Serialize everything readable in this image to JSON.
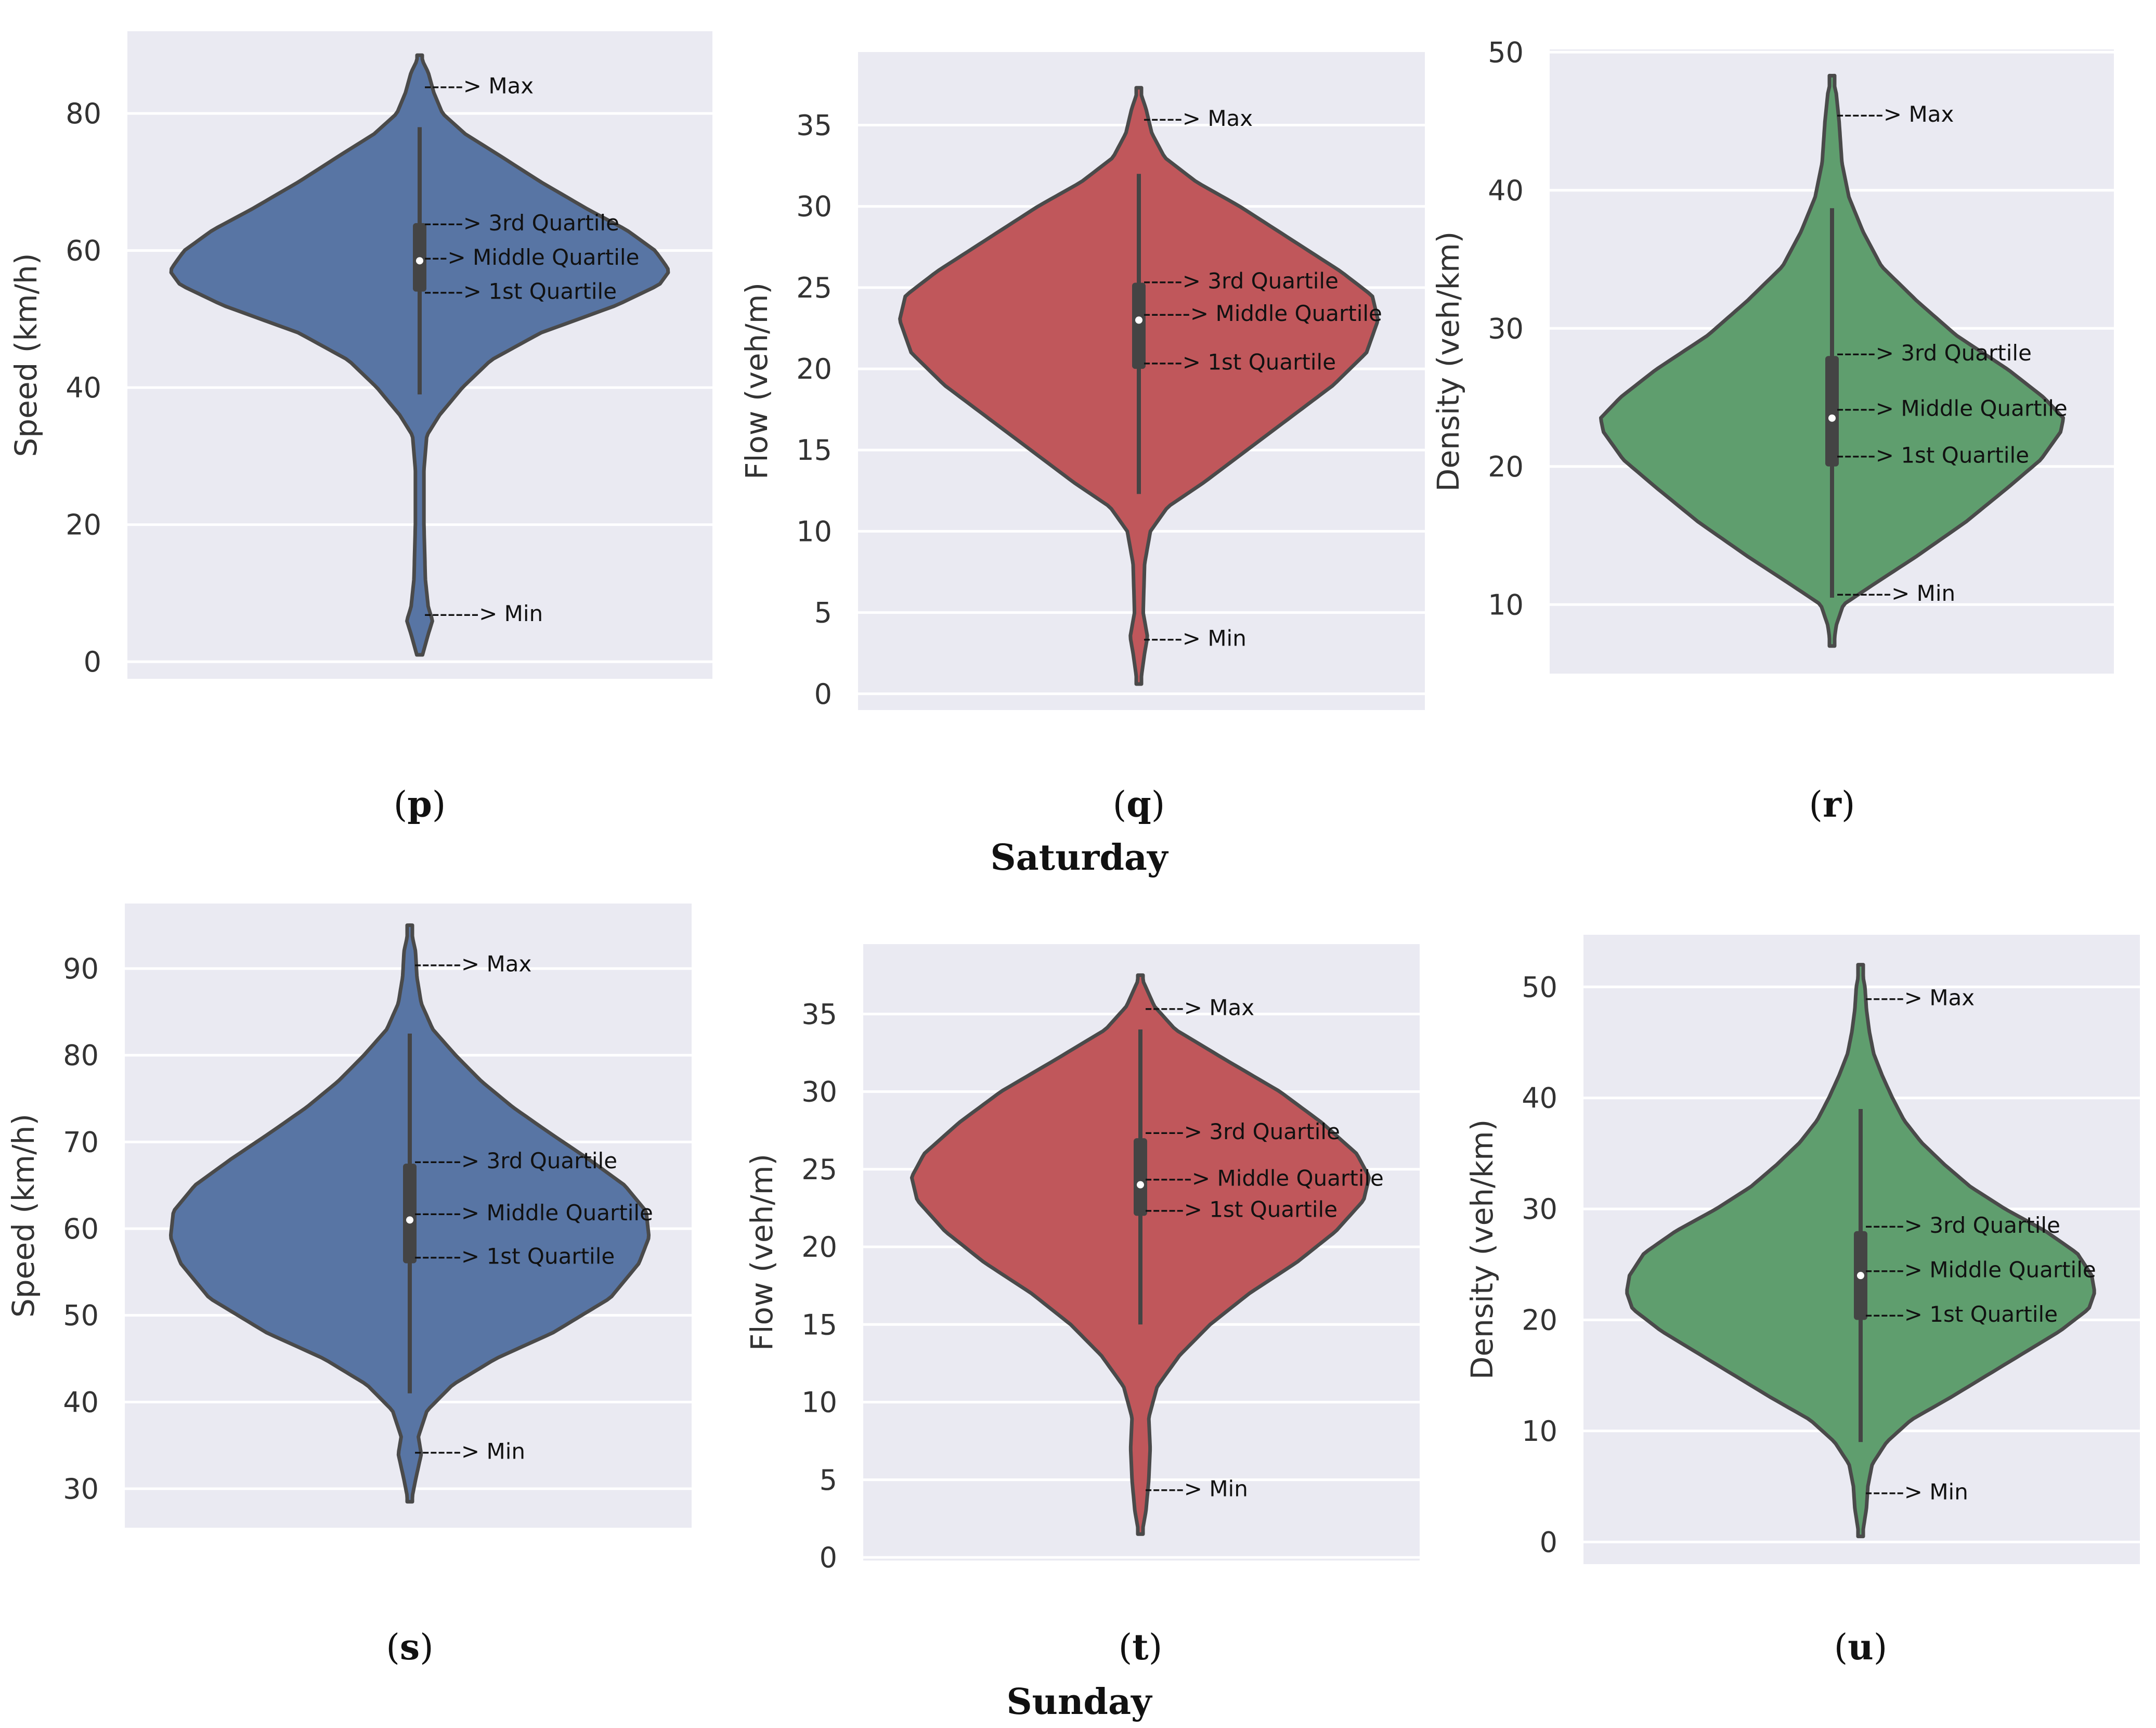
{
  "figure": {
    "group_titles": [
      "Saturday",
      "Sunday"
    ]
  },
  "chart_data": [
    {
      "panel": "p",
      "group": "Saturday",
      "type": "violin",
      "variable": "Speed",
      "ylabel": "Speed (km/h)",
      "ylim": [
        -2.5,
        92
      ],
      "yticks": [
        0,
        20,
        40,
        60,
        80
      ],
      "color": "#5875a4",
      "stats": {
        "min": 7,
        "q1": 54,
        "median": 58.5,
        "q3": 64,
        "max": 84,
        "whisker_low": 39,
        "whisker_high": 78
      },
      "density": {
        "tail_low": 1,
        "tail_high": 88.5,
        "profile": [
          [
            1,
            2
          ],
          [
            4,
            6
          ],
          [
            6,
            9
          ],
          [
            8,
            6
          ],
          [
            12,
            4
          ],
          [
            20,
            3
          ],
          [
            28,
            3
          ],
          [
            33,
            5
          ],
          [
            36,
            14
          ],
          [
            40,
            30
          ],
          [
            44,
            50
          ],
          [
            48,
            85
          ],
          [
            52,
            138
          ],
          [
            55,
            168
          ],
          [
            57,
            175
          ],
          [
            58,
            172
          ],
          [
            60,
            165
          ],
          [
            63,
            145
          ],
          [
            66,
            118
          ],
          [
            70,
            85
          ],
          [
            74,
            55
          ],
          [
            77,
            32
          ],
          [
            80,
            16
          ],
          [
            83,
            10
          ],
          [
            86,
            6
          ],
          [
            88.5,
            0
          ]
        ]
      },
      "annotations": [
        {
          "value": 84,
          "label": "-----> Max"
        },
        {
          "value": 64,
          "label": "-----> 3rd Quartile"
        },
        {
          "value": 59,
          "label": "---> Middle Quartile"
        },
        {
          "value": 54,
          "label": "-----> 1st Quartile"
        },
        {
          "value": 7,
          "label": "-------> Min"
        }
      ],
      "caption_letter": "p"
    },
    {
      "panel": "q",
      "group": "Saturday",
      "type": "violin",
      "variable": "Flow",
      "ylabel": "Flow (veh/m)",
      "ylim": [
        -1,
        39.5
      ],
      "yticks": [
        0,
        5,
        10,
        15,
        20,
        25,
        30,
        35
      ],
      "color": "#c0575b",
      "stats": {
        "min": 3.3,
        "q1": 20,
        "median": 23,
        "q3": 25.3,
        "max": 35.4,
        "whisker_low": 12.3,
        "whisker_high": 32
      },
      "density": {
        "tail_low": 0.6,
        "tail_high": 37.3,
        "profile": [
          [
            0.6,
            1
          ],
          [
            2.5,
            4
          ],
          [
            3.5,
            6
          ],
          [
            5,
            3
          ],
          [
            8,
            4
          ],
          [
            10,
            8
          ],
          [
            11.5,
            20
          ],
          [
            13,
            45
          ],
          [
            15,
            75
          ],
          [
            17,
            105
          ],
          [
            19,
            135
          ],
          [
            21,
            158
          ],
          [
            23,
            166
          ],
          [
            24.5,
            162
          ],
          [
            26,
            140
          ],
          [
            28,
            105
          ],
          [
            30,
            70
          ],
          [
            31.5,
            40
          ],
          [
            33,
            18
          ],
          [
            34.5,
            9
          ],
          [
            36,
            5
          ],
          [
            37.3,
            0
          ]
        ]
      },
      "annotations": [
        {
          "value": 35.4,
          "label": "-----> Max"
        },
        {
          "value": 25.4,
          "label": "-----> 3rd Quartile"
        },
        {
          "value": 23.4,
          "label": "------> Middle Quartile"
        },
        {
          "value": 20.4,
          "label": "-----> 1st Quartile"
        },
        {
          "value": 3.4,
          "label": "-----> Min"
        }
      ],
      "caption_letter": "q"
    },
    {
      "panel": "r",
      "group": "Saturday",
      "type": "violin",
      "variable": "Density",
      "ylabel": "Density (veh/km)",
      "ylim": [
        5,
        50.2
      ],
      "yticks": [
        10,
        20,
        30,
        40,
        50
      ],
      "color": "#5f9e6e",
      "stats": {
        "min": 10.7,
        "q1": 20,
        "median": 23.5,
        "q3": 28,
        "max": 45.5,
        "whisker_low": 10.5,
        "whisker_high": 38.7
      },
      "density": {
        "tail_low": 7,
        "tail_high": 48.3,
        "profile": [
          [
            7,
            1
          ],
          [
            8.5,
            3
          ],
          [
            10,
            8
          ],
          [
            11.5,
            30
          ],
          [
            13.5,
            60
          ],
          [
            16,
            95
          ],
          [
            18.5,
            125
          ],
          [
            20.5,
            148
          ],
          [
            22.5,
            162
          ],
          [
            23.5,
            164
          ],
          [
            25,
            150
          ],
          [
            27,
            125
          ],
          [
            29.5,
            88
          ],
          [
            32,
            60
          ],
          [
            34.5,
            35
          ],
          [
            37,
            22
          ],
          [
            39.5,
            12
          ],
          [
            42,
            7
          ],
          [
            45,
            5
          ],
          [
            47,
            3
          ],
          [
            48.3,
            0
          ]
        ]
      },
      "annotations": [
        {
          "value": 45.5,
          "label": "------> Max"
        },
        {
          "value": 28.2,
          "label": "-----> 3rd Quartile"
        },
        {
          "value": 24.2,
          "label": "-----> Middle Quartile"
        },
        {
          "value": 20.8,
          "label": "-----> 1st Quartile"
        },
        {
          "value": 10.8,
          "label": "-------> Min"
        }
      ],
      "caption_letter": "r"
    },
    {
      "panel": "s",
      "group": "Sunday",
      "type": "violin",
      "variable": "Speed",
      "ylabel": "Speed (km/h)",
      "ylim": [
        25.5,
        97.5
      ],
      "yticks": [
        30,
        40,
        50,
        60,
        70,
        80,
        90
      ],
      "color": "#5875a4",
      "stats": {
        "min": 34.5,
        "q1": 56,
        "median": 61,
        "q3": 67.5,
        "max": 90.5,
        "whisker_low": 41,
        "whisker_high": 82.5
      },
      "density": {
        "tail_low": 28.5,
        "tail_high": 95,
        "profile": [
          [
            28.5,
            1
          ],
          [
            31,
            4
          ],
          [
            34,
            8
          ],
          [
            36,
            6
          ],
          [
            39,
            12
          ],
          [
            42,
            30
          ],
          [
            45,
            60
          ],
          [
            48,
            100
          ],
          [
            52,
            140
          ],
          [
            56,
            160
          ],
          [
            59,
            167
          ],
          [
            62,
            165
          ],
          [
            65,
            150
          ],
          [
            68,
            125
          ],
          [
            71,
            98
          ],
          [
            74,
            72
          ],
          [
            77,
            50
          ],
          [
            80,
            32
          ],
          [
            83,
            16
          ],
          [
            86,
            8
          ],
          [
            89,
            5
          ],
          [
            92,
            4
          ],
          [
            95,
            0
          ]
        ]
      },
      "annotations": [
        {
          "value": 90.5,
          "label": "------> Max"
        },
        {
          "value": 67.8,
          "label": "------> 3rd Quartile"
        },
        {
          "value": 61.8,
          "label": "------> Middle Quartile"
        },
        {
          "value": 56.8,
          "label": "------> 1st Quartile"
        },
        {
          "value": 34.3,
          "label": "------> Min"
        }
      ],
      "caption_letter": "s"
    },
    {
      "panel": "t",
      "group": "Sunday",
      "type": "violin",
      "variable": "Flow",
      "ylabel": "Flow (veh/m)",
      "ylim": [
        -0.2,
        39.5
      ],
      "yticks": [
        0,
        5,
        10,
        15,
        20,
        25,
        30,
        35
      ],
      "color": "#c0575b",
      "stats": {
        "min": 4.4,
        "q1": 22,
        "median": 24,
        "q3": 27,
        "max": 35.4,
        "whisker_low": 15,
        "whisker_high": 34
      },
      "density": {
        "tail_low": 1.5,
        "tail_high": 37.5,
        "profile": [
          [
            1.5,
            1
          ],
          [
            3,
            4
          ],
          [
            5,
            6
          ],
          [
            7,
            7
          ],
          [
            9,
            6
          ],
          [
            11,
            12
          ],
          [
            13,
            28
          ],
          [
            15,
            50
          ],
          [
            17,
            78
          ],
          [
            19,
            112
          ],
          [
            21,
            140
          ],
          [
            23,
            160
          ],
          [
            24.5,
            164
          ],
          [
            26,
            155
          ],
          [
            28,
            130
          ],
          [
            30,
            100
          ],
          [
            32,
            62
          ],
          [
            34,
            25
          ],
          [
            35.5,
            10
          ],
          [
            36.5,
            5
          ],
          [
            37.5,
            0
          ]
        ]
      },
      "annotations": [
        {
          "value": 35.4,
          "label": "-----> Max"
        },
        {
          "value": 27.4,
          "label": "-----> 3rd Quartile"
        },
        {
          "value": 24.4,
          "label": "------> Middle Quartile"
        },
        {
          "value": 22.4,
          "label": "-----> 1st Quartile"
        },
        {
          "value": 4.4,
          "label": "-----> Min"
        }
      ],
      "caption_letter": "t"
    },
    {
      "panel": "u",
      "group": "Sunday",
      "type": "violin",
      "variable": "Density",
      "ylabel": "Density (veh/km)",
      "ylim": [
        -2,
        54.7
      ],
      "yticks": [
        0,
        10,
        20,
        30,
        40,
        50
      ],
      "color": "#5f9e6e",
      "stats": {
        "min": 4.5,
        "q1": 20,
        "median": 24,
        "q3": 28,
        "max": 49,
        "whisker_low": 9,
        "whisker_high": 39
      },
      "density": {
        "tail_low": 0.5,
        "tail_high": 52,
        "profile": [
          [
            0.5,
            1
          ],
          [
            3,
            4
          ],
          [
            5,
            5
          ],
          [
            7,
            8
          ],
          [
            9,
            18
          ],
          [
            11,
            35
          ],
          [
            13,
            62
          ],
          [
            16,
            100
          ],
          [
            19,
            138
          ],
          [
            21,
            158
          ],
          [
            22.5,
            162
          ],
          [
            24,
            160
          ],
          [
            26,
            150
          ],
          [
            28,
            128
          ],
          [
            30,
            100
          ],
          [
            32,
            76
          ],
          [
            34,
            58
          ],
          [
            36,
            42
          ],
          [
            38,
            30
          ],
          [
            40,
            22
          ],
          [
            42,
            15
          ],
          [
            44,
            9
          ],
          [
            46,
            6
          ],
          [
            48,
            4
          ],
          [
            50,
            3
          ],
          [
            52,
            0
          ]
        ]
      },
      "annotations": [
        {
          "value": 49,
          "label": "-----> Max"
        },
        {
          "value": 28.5,
          "label": "-----> 3rd Quartile"
        },
        {
          "value": 24.5,
          "label": "-----> Middle Quartile"
        },
        {
          "value": 20.5,
          "label": "-----> 1st Quartile"
        },
        {
          "value": 4.5,
          "label": "-----> Min"
        }
      ],
      "caption_letter": "u"
    }
  ]
}
